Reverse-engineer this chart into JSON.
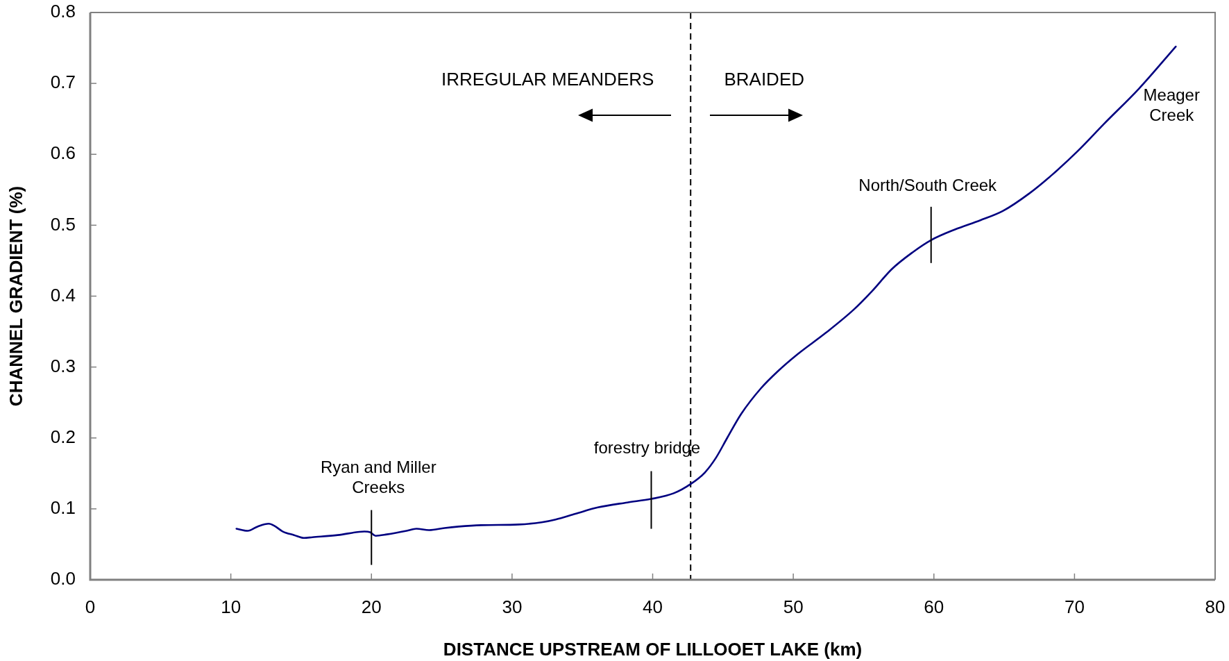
{
  "chart_data": {
    "type": "line",
    "xlabel": "DISTANCE UPSTREAM OF LILLOOET LAKE (km)",
    "ylabel": "CHANNEL GRADIENT (%)",
    "x": [
      10.4,
      11.2,
      11.9,
      12.7,
      13.1,
      13.7,
      14.5,
      15.2,
      15.8,
      17.6,
      19.5,
      19.9,
      20.3,
      21.1,
      22.5,
      23.2,
      24.1,
      25.2,
      26.2,
      27.8,
      30.5,
      32.1,
      33.1,
      34.5,
      36.1,
      38.2,
      39.9,
      41.5,
      42.7,
      43.7,
      44.5,
      45.3,
      46.3,
      47.7,
      48.9,
      50.3,
      52.3,
      54.3,
      55.6,
      57.0,
      58.5,
      59.8,
      61.5,
      63.3,
      64.9,
      66.8,
      68.4,
      70.2,
      72.1,
      74.6,
      77.2
    ],
    "values": [
      0.072,
      0.069,
      0.075,
      0.079,
      0.076,
      0.068,
      0.063,
      0.059,
      0.06,
      0.063,
      0.068,
      0.067,
      0.062,
      0.064,
      0.069,
      0.072,
      0.07,
      0.073,
      0.075,
      0.077,
      0.078,
      0.081,
      0.085,
      0.093,
      0.102,
      0.109,
      0.114,
      0.122,
      0.135,
      0.151,
      0.172,
      0.2,
      0.234,
      0.27,
      0.294,
      0.318,
      0.348,
      0.381,
      0.407,
      0.438,
      0.462,
      0.479,
      0.494,
      0.507,
      0.52,
      0.545,
      0.571,
      0.604,
      0.643,
      0.693,
      0.752
    ],
    "color": "#000080",
    "marker": "none",
    "line_style": "solid",
    "xlim": [
      0,
      80
    ],
    "xticks": [
      0,
      10,
      20,
      30,
      40,
      50,
      60,
      70,
      80
    ],
    "ylim": [
      0,
      0.8
    ],
    "yticks": [
      {
        "value": 0,
        "label": "0.0"
      },
      0.1,
      0.2,
      0.3,
      0.4,
      0.5,
      0.6,
      0.7,
      0.8
    ],
    "ref_lines": [
      {
        "axis": "x",
        "value": 42.7,
        "color": "#000000",
        "line_style": "dashed"
      }
    ],
    "annotations": [
      "IRREGULAR MEANDERS",
      "BRAIDED",
      {
        "text": "Ryan and Miller Creeks",
        "x": 20.0,
        "y": 0.066
      },
      {
        "text": "forestry bridge",
        "x": 39.9,
        "y": 0.114
      },
      {
        "text": "North/South Creek",
        "x": 59.8,
        "y": 0.479
      },
      {
        "text": "Meager Creek",
        "x": 77.2,
        "y": 0.752
      }
    ]
  }
}
